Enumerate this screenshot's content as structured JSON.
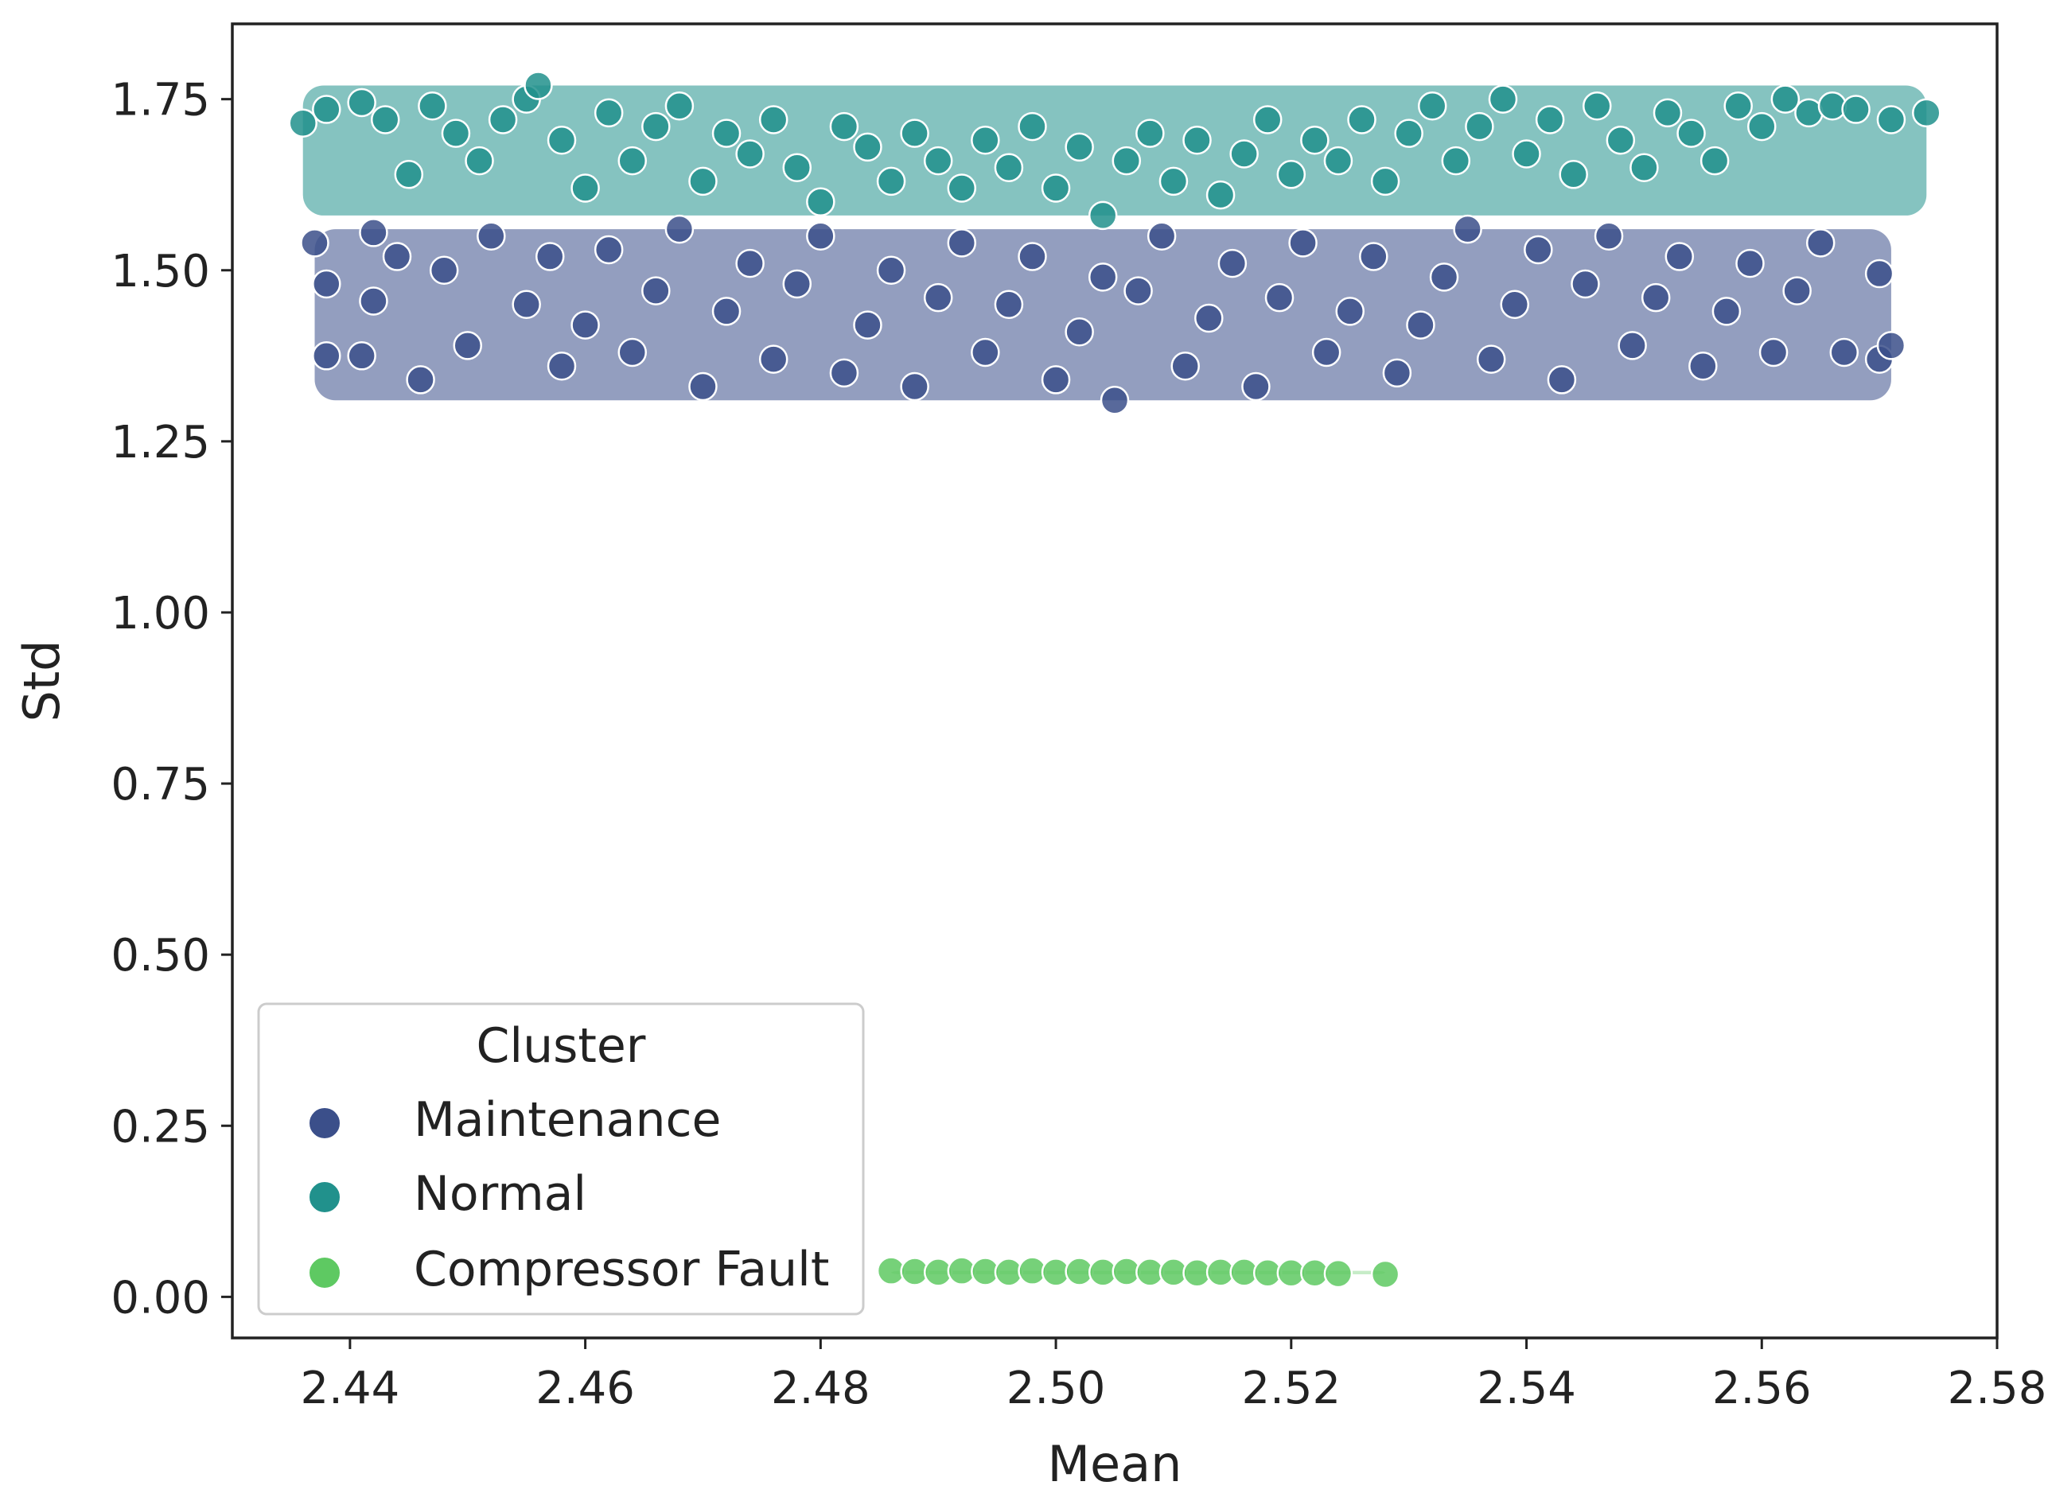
{
  "chart_data": {
    "type": "scatter",
    "title": "",
    "xlabel": "Mean",
    "ylabel": "Std",
    "xlim": [
      2.43,
      2.58
    ],
    "ylim": [
      -0.06,
      1.86
    ],
    "x_ticks": [
      2.44,
      2.46,
      2.48,
      2.5,
      2.52,
      2.54,
      2.56,
      2.58
    ],
    "x_tick_labels": [
      "2.44",
      "2.46",
      "2.48",
      "2.50",
      "2.52",
      "2.54",
      "2.56",
      "2.58"
    ],
    "y_ticks": [
      0.0,
      0.25,
      0.5,
      0.75,
      1.0,
      1.25,
      1.5,
      1.75
    ],
    "y_tick_labels": [
      "0.00",
      "0.25",
      "0.50",
      "0.75",
      "1.00",
      "1.25",
      "1.50",
      "1.75"
    ],
    "grid": false,
    "legend": {
      "title": "Cluster",
      "placement": "lower-left",
      "entries": [
        "Maintenance",
        "Normal",
        "Compressor Fault"
      ]
    },
    "series": [
      {
        "name": "Maintenance",
        "color": "#3b4f8a",
        "points": [
          [
            2.437,
            1.54
          ],
          [
            2.438,
            1.48
          ],
          [
            2.438,
            1.375
          ],
          [
            2.442,
            1.455
          ],
          [
            2.441,
            1.375
          ],
          [
            2.442,
            1.555
          ],
          [
            2.444,
            1.52
          ],
          [
            2.446,
            1.34
          ],
          [
            2.448,
            1.5
          ],
          [
            2.45,
            1.39
          ],
          [
            2.452,
            1.55
          ],
          [
            2.455,
            1.45
          ],
          [
            2.457,
            1.52
          ],
          [
            2.458,
            1.36
          ],
          [
            2.46,
            1.42
          ],
          [
            2.462,
            1.53
          ],
          [
            2.464,
            1.38
          ],
          [
            2.466,
            1.47
          ],
          [
            2.468,
            1.56
          ],
          [
            2.47,
            1.33
          ],
          [
            2.472,
            1.44
          ],
          [
            2.474,
            1.51
          ],
          [
            2.476,
            1.37
          ],
          [
            2.478,
            1.48
          ],
          [
            2.48,
            1.55
          ],
          [
            2.482,
            1.35
          ],
          [
            2.484,
            1.42
          ],
          [
            2.486,
            1.5
          ],
          [
            2.488,
            1.33
          ],
          [
            2.49,
            1.46
          ],
          [
            2.492,
            1.54
          ],
          [
            2.494,
            1.38
          ],
          [
            2.496,
            1.45
          ],
          [
            2.498,
            1.52
          ],
          [
            2.5,
            1.34
          ],
          [
            2.502,
            1.41
          ],
          [
            2.504,
            1.49
          ],
          [
            2.505,
            1.31
          ],
          [
            2.507,
            1.47
          ],
          [
            2.509,
            1.55
          ],
          [
            2.511,
            1.36
          ],
          [
            2.513,
            1.43
          ],
          [
            2.515,
            1.51
          ],
          [
            2.517,
            1.33
          ],
          [
            2.519,
            1.46
          ],
          [
            2.521,
            1.54
          ],
          [
            2.523,
            1.38
          ],
          [
            2.525,
            1.44
          ],
          [
            2.527,
            1.52
          ],
          [
            2.529,
            1.35
          ],
          [
            2.531,
            1.42
          ],
          [
            2.533,
            1.49
          ],
          [
            2.535,
            1.56
          ],
          [
            2.537,
            1.37
          ],
          [
            2.539,
            1.45
          ],
          [
            2.541,
            1.53
          ],
          [
            2.543,
            1.34
          ],
          [
            2.545,
            1.48
          ],
          [
            2.547,
            1.55
          ],
          [
            2.549,
            1.39
          ],
          [
            2.551,
            1.46
          ],
          [
            2.553,
            1.52
          ],
          [
            2.555,
            1.36
          ],
          [
            2.557,
            1.44
          ],
          [
            2.559,
            1.51
          ],
          [
            2.561,
            1.38
          ],
          [
            2.563,
            1.47
          ],
          [
            2.565,
            1.54
          ],
          [
            2.567,
            1.38
          ],
          [
            2.57,
            1.495
          ],
          [
            2.57,
            1.37
          ],
          [
            2.571,
            1.39
          ]
        ]
      },
      {
        "name": "Normal",
        "color": "#21918c",
        "points": [
          [
            2.436,
            1.715
          ],
          [
            2.438,
            1.735
          ],
          [
            2.441,
            1.745
          ],
          [
            2.443,
            1.72
          ],
          [
            2.445,
            1.64
          ],
          [
            2.447,
            1.74
          ],
          [
            2.449,
            1.7
          ],
          [
            2.451,
            1.66
          ],
          [
            2.453,
            1.72
          ],
          [
            2.455,
            1.75
          ],
          [
            2.456,
            1.77
          ],
          [
            2.458,
            1.69
          ],
          [
            2.46,
            1.62
          ],
          [
            2.462,
            1.73
          ],
          [
            2.464,
            1.66
          ],
          [
            2.466,
            1.71
          ],
          [
            2.468,
            1.74
          ],
          [
            2.47,
            1.63
          ],
          [
            2.472,
            1.7
          ],
          [
            2.474,
            1.67
          ],
          [
            2.476,
            1.72
          ],
          [
            2.478,
            1.65
          ],
          [
            2.48,
            1.6
          ],
          [
            2.482,
            1.71
          ],
          [
            2.484,
            1.68
          ],
          [
            2.486,
            1.63
          ],
          [
            2.488,
            1.7
          ],
          [
            2.49,
            1.66
          ],
          [
            2.492,
            1.62
          ],
          [
            2.494,
            1.69
          ],
          [
            2.496,
            1.65
          ],
          [
            2.498,
            1.71
          ],
          [
            2.5,
            1.62
          ],
          [
            2.502,
            1.68
          ],
          [
            2.504,
            1.58
          ],
          [
            2.506,
            1.66
          ],
          [
            2.508,
            1.7
          ],
          [
            2.51,
            1.63
          ],
          [
            2.512,
            1.69
          ],
          [
            2.514,
            1.61
          ],
          [
            2.516,
            1.67
          ],
          [
            2.518,
            1.72
          ],
          [
            2.52,
            1.64
          ],
          [
            2.522,
            1.69
          ],
          [
            2.524,
            1.66
          ],
          [
            2.526,
            1.72
          ],
          [
            2.528,
            1.63
          ],
          [
            2.53,
            1.7
          ],
          [
            2.532,
            1.74
          ],
          [
            2.534,
            1.66
          ],
          [
            2.536,
            1.71
          ],
          [
            2.538,
            1.75
          ],
          [
            2.54,
            1.67
          ],
          [
            2.542,
            1.72
          ],
          [
            2.544,
            1.64
          ],
          [
            2.546,
            1.74
          ],
          [
            2.548,
            1.69
          ],
          [
            2.55,
            1.65
          ],
          [
            2.552,
            1.73
          ],
          [
            2.554,
            1.7
          ],
          [
            2.556,
            1.66
          ],
          [
            2.558,
            1.74
          ],
          [
            2.56,
            1.71
          ],
          [
            2.562,
            1.75
          ],
          [
            2.564,
            1.73
          ],
          [
            2.566,
            1.74
          ],
          [
            2.568,
            1.735
          ],
          [
            2.571,
            1.72
          ],
          [
            2.574,
            1.73
          ]
        ]
      },
      {
        "name": "Compressor Fault",
        "color": "#5ec962",
        "points": [
          [
            2.486,
            0.038
          ],
          [
            2.488,
            0.037
          ],
          [
            2.49,
            0.036
          ],
          [
            2.492,
            0.038
          ],
          [
            2.494,
            0.037
          ],
          [
            2.496,
            0.036
          ],
          [
            2.498,
            0.038
          ],
          [
            2.5,
            0.036
          ],
          [
            2.502,
            0.037
          ],
          [
            2.504,
            0.036
          ],
          [
            2.506,
            0.037
          ],
          [
            2.508,
            0.036
          ],
          [
            2.51,
            0.036
          ],
          [
            2.512,
            0.035
          ],
          [
            2.514,
            0.036
          ],
          [
            2.516,
            0.036
          ],
          [
            2.518,
            0.035
          ],
          [
            2.52,
            0.035
          ],
          [
            2.522,
            0.035
          ],
          [
            2.524,
            0.034
          ],
          [
            2.528,
            0.033
          ]
        ]
      }
    ]
  }
}
